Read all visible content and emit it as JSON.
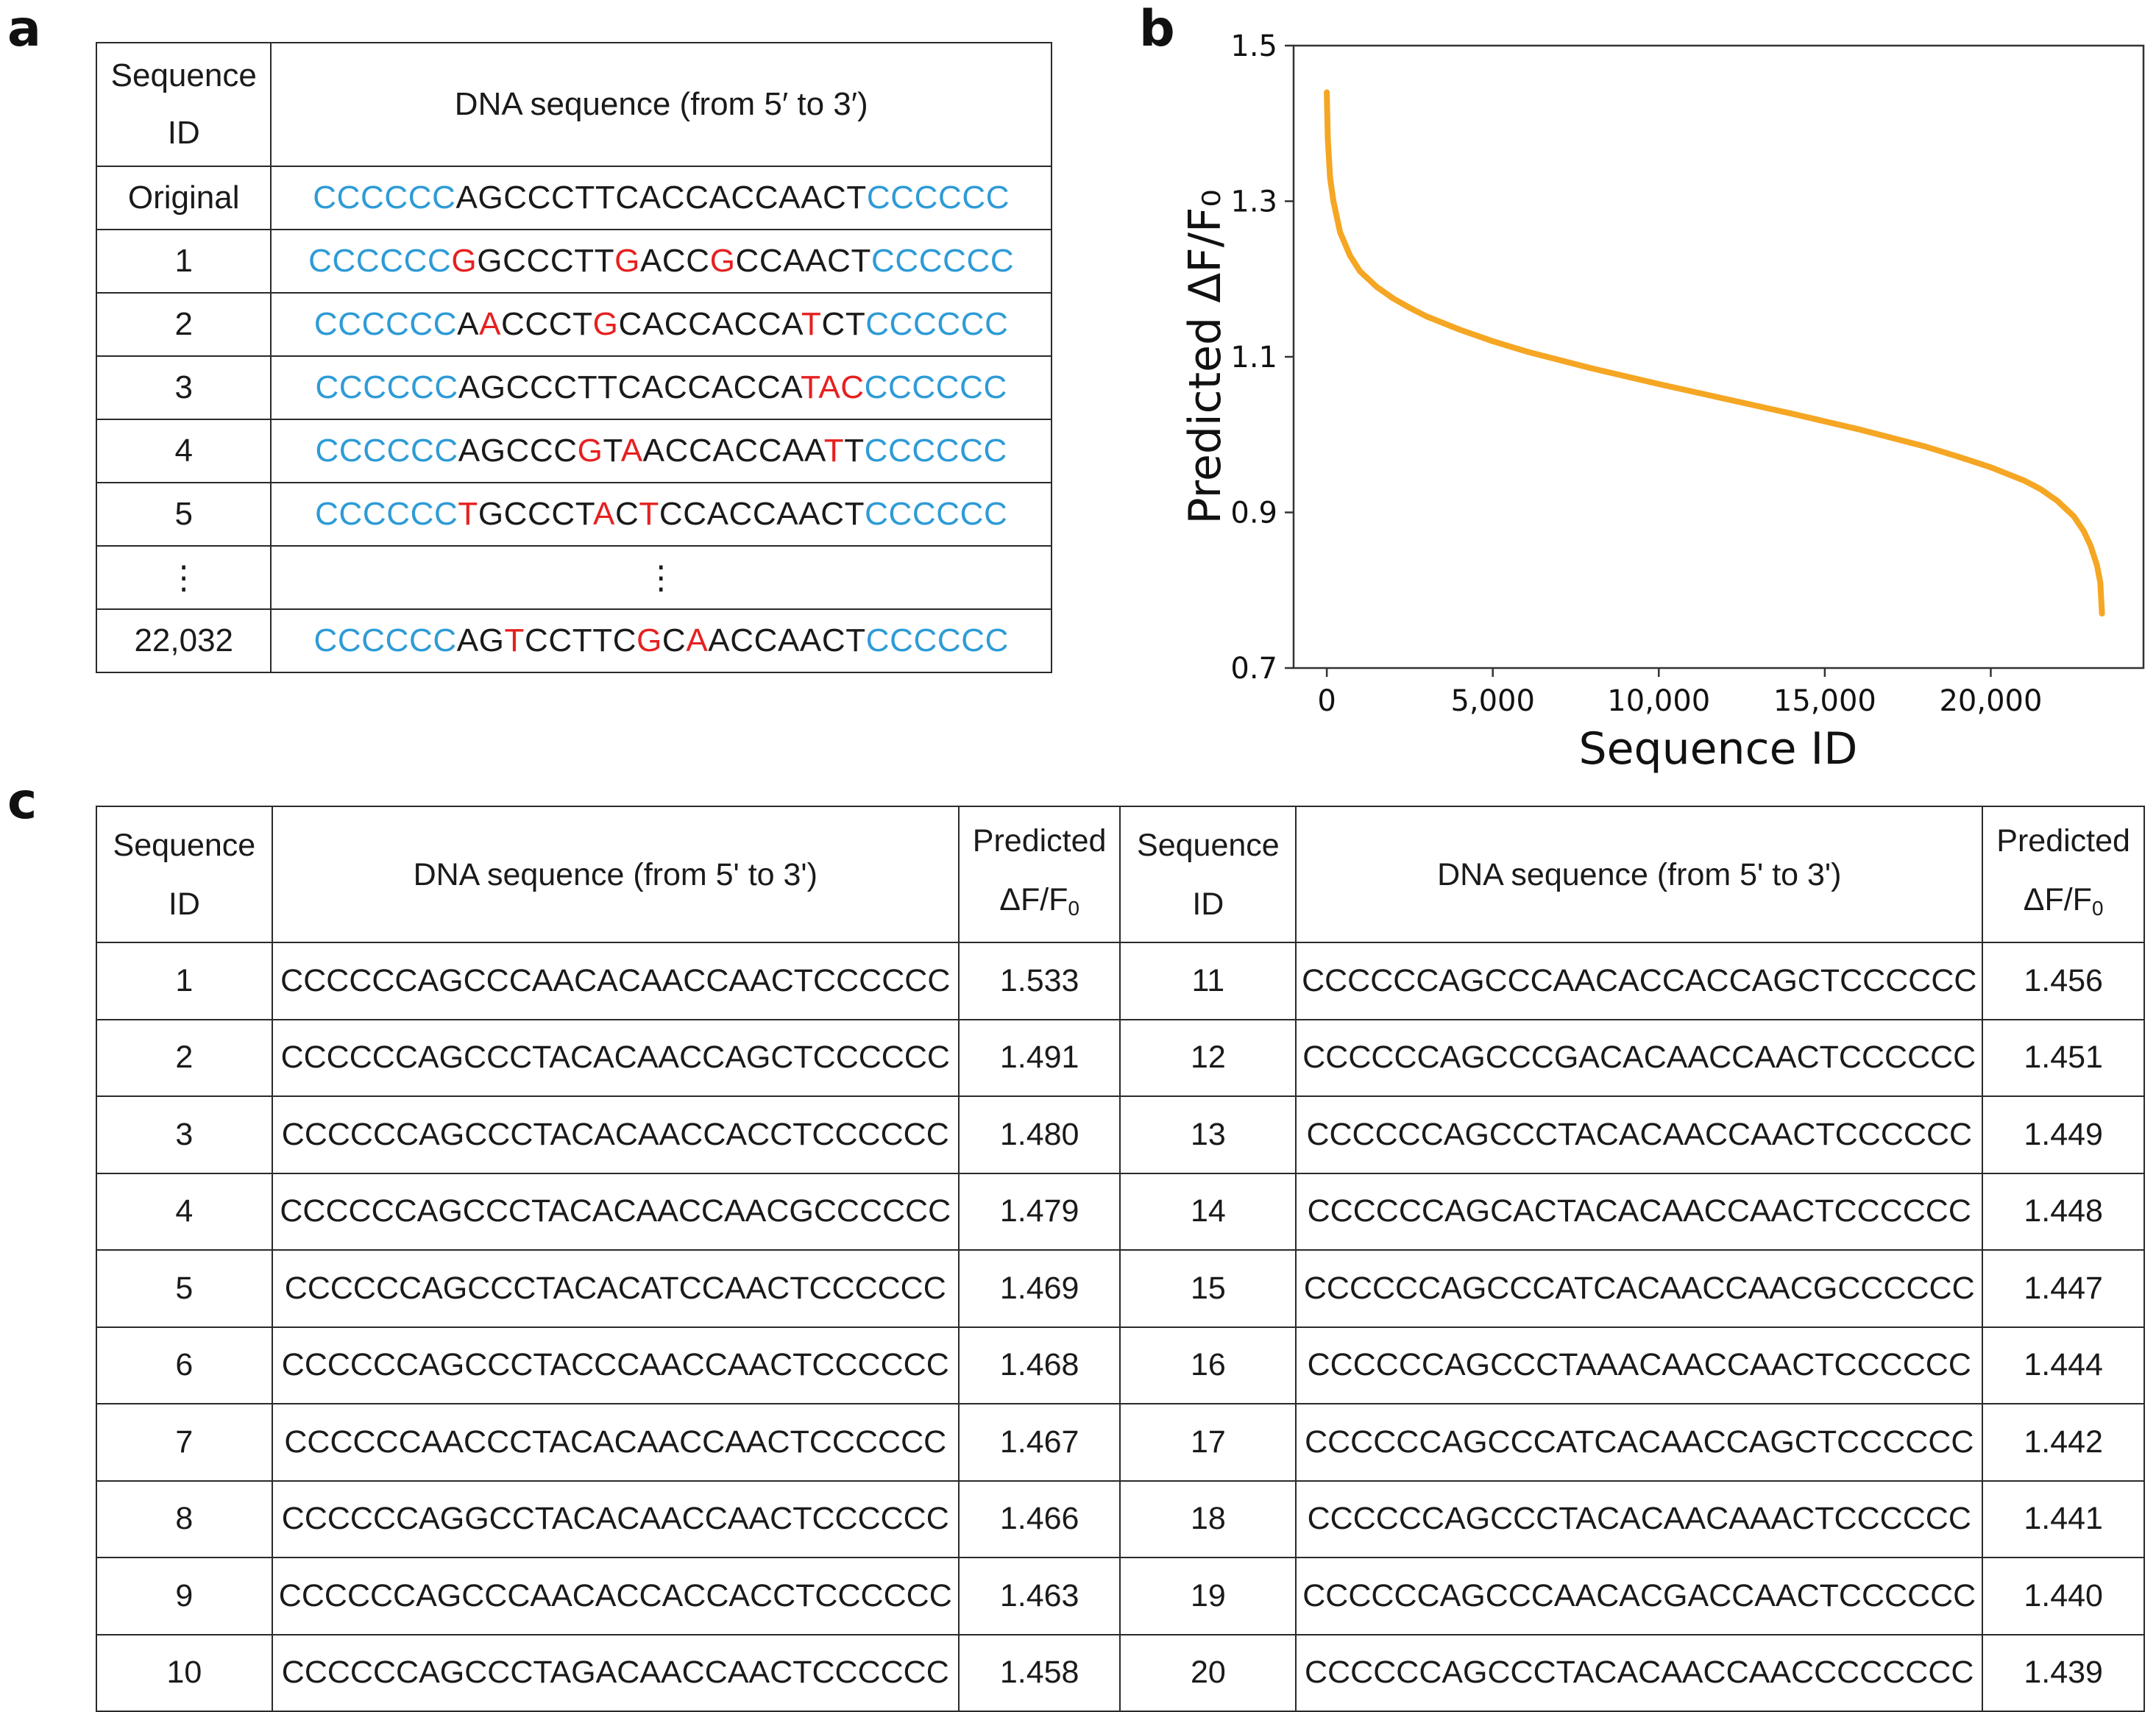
{
  "panels": {
    "a": "a",
    "b": "b",
    "c": "c"
  },
  "colors": {
    "flank": "#2e9bd6",
    "mutation": "#e62020",
    "curve": "#f5a623"
  },
  "tableA": {
    "header_id_line1": "Sequence",
    "header_id_line2": "ID",
    "header_seq": "DNA sequence (from 5′ to 3′)",
    "rows": [
      {
        "id": "Original",
        "segments": [
          [
            "CCCCCC",
            "b"
          ],
          [
            "AGCCCTTCACCACCAACT",
            "n"
          ],
          [
            "CCCCCC",
            "b"
          ]
        ]
      },
      {
        "id": "1",
        "segments": [
          [
            "CCCCCC",
            "b"
          ],
          [
            "G",
            "r"
          ],
          [
            "GCCCTT",
            "n"
          ],
          [
            "G",
            "r"
          ],
          [
            "ACC",
            "n"
          ],
          [
            "G",
            "r"
          ],
          [
            "CCAACT",
            "n"
          ],
          [
            "CCCCCC",
            "b"
          ]
        ]
      },
      {
        "id": "2",
        "segments": [
          [
            "CCCCCC",
            "b"
          ],
          [
            "A",
            "n"
          ],
          [
            "A",
            "r"
          ],
          [
            "CCCT",
            "n"
          ],
          [
            "G",
            "r"
          ],
          [
            "CACCACCA",
            "n"
          ],
          [
            "T",
            "r"
          ],
          [
            "CT",
            "n"
          ],
          [
            "CCCCCC",
            "b"
          ]
        ]
      },
      {
        "id": "3",
        "segments": [
          [
            "CCCCCC",
            "b"
          ],
          [
            "AGCCCTTCACCACCA",
            "n"
          ],
          [
            "TAC",
            "r"
          ],
          [
            "CCCCCC",
            "b"
          ]
        ]
      },
      {
        "id": "4",
        "segments": [
          [
            "CCCCCC",
            "b"
          ],
          [
            "AGCCC",
            "n"
          ],
          [
            "G",
            "r"
          ],
          [
            "T",
            "n"
          ],
          [
            "A",
            "r"
          ],
          [
            "ACCACCAA",
            "n"
          ],
          [
            "T",
            "r"
          ],
          [
            "T",
            "n"
          ],
          [
            "CCCCCC",
            "b"
          ]
        ]
      },
      {
        "id": "5",
        "segments": [
          [
            "CCCCCC",
            "b"
          ],
          [
            "T",
            "r"
          ],
          [
            "GCCCT",
            "n"
          ],
          [
            "A",
            "r"
          ],
          [
            "C",
            "n"
          ],
          [
            "T",
            "r"
          ],
          [
            "CCACCAACT",
            "n"
          ],
          [
            "CCCCCC",
            "b"
          ]
        ]
      },
      {
        "id": "⋮",
        "segments": [
          [
            "⋮",
            "n"
          ]
        ]
      },
      {
        "id": "22,032",
        "segments": [
          [
            "CCCCCC",
            "b"
          ],
          [
            "AG",
            "n"
          ],
          [
            "T",
            "r"
          ],
          [
            "CCTTC",
            "n"
          ],
          [
            "G",
            "r"
          ],
          [
            "C",
            "n"
          ],
          [
            "A",
            "r"
          ],
          [
            "ACCAACT",
            "n"
          ],
          [
            "CCCCCC",
            "b"
          ]
        ]
      }
    ]
  },
  "chart_data": {
    "type": "line",
    "title": "",
    "xlabel": "Sequence ID",
    "ylabel": "Predicted ΔF/F₀",
    "xlim": [
      -1000,
      24600
    ],
    "ylim": [
      0.7,
      1.5
    ],
    "xticks": [
      0,
      5000,
      10000,
      15000,
      20000
    ],
    "xtick_labels": [
      "0",
      "5,000",
      "10,000",
      "15,000",
      "20,000"
    ],
    "yticks": [
      0.7,
      0.9,
      1.1,
      1.3,
      1.5
    ],
    "ytick_labels": [
      "0.7",
      "0.9",
      "1.1",
      "1.3",
      "1.5"
    ],
    "grid": false,
    "series": [
      {
        "color": "#f5a623",
        "x": [
          0,
          30,
          100,
          200,
          400,
          700,
          1000,
          1500,
          2000,
          2500,
          3000,
          4000,
          5000,
          6000,
          8000,
          10000,
          12000,
          14000,
          16000,
          18000,
          19000,
          20000,
          21000,
          21500,
          22000,
          22500,
          22800,
          23000,
          23200,
          23300,
          23350
        ],
        "y": [
          1.44,
          1.38,
          1.33,
          1.3,
          1.26,
          1.23,
          1.21,
          1.19,
          1.175,
          1.163,
          1.152,
          1.135,
          1.12,
          1.107,
          1.085,
          1.065,
          1.046,
          1.027,
          1.007,
          0.985,
          0.972,
          0.958,
          0.941,
          0.93,
          0.915,
          0.895,
          0.876,
          0.858,
          0.832,
          0.81,
          0.77
        ]
      }
    ]
  },
  "tableC": {
    "header_id_line1": "Sequence",
    "header_id_line2": "ID",
    "header_seq": "DNA sequence (from 5' to 3')",
    "header_pred_line1": "Predicted",
    "header_pred_line2": "ΔF/F",
    "header_pred_sub": "0",
    "rows": [
      [
        "1",
        "CCCCCCAGCCCAACACAACCAACTCCCCCC",
        "1.533",
        "11",
        "CCCCCCAGCCCAACACCACCAGCTCCCCCC",
        "1.456"
      ],
      [
        "2",
        "CCCCCCAGCCCTACACAACCAGCTCCCCCC",
        "1.491",
        "12",
        "CCCCCCAGCCCGACACAACCAACTCCCCCC",
        "1.451"
      ],
      [
        "3",
        "CCCCCCAGCCCTACACAACCACCTCCCCCC",
        "1.480",
        "13",
        "CCCCCCAGCCCTACACAACCAACTCCCCCC",
        "1.449"
      ],
      [
        "4",
        "CCCCCCAGCCCTACACAACCAACGCCCCCC",
        "1.479",
        "14",
        "CCCCCCAGCACTACACAACCAACTCCCCCC",
        "1.448"
      ],
      [
        "5",
        "CCCCCCAGCCCTACACATCCAACTCCCCCC",
        "1.469",
        "15",
        "CCCCCCAGCCCATCACAACCAACGCCCCCC",
        "1.447"
      ],
      [
        "6",
        "CCCCCCAGCCCTACCCAACCAACTCCCCCC",
        "1.468",
        "16",
        "CCCCCCAGCCCTAAACAACCAACTCCCCCC",
        "1.444"
      ],
      [
        "7",
        "CCCCCCAACCCTACACAACCAACTCCCCCC",
        "1.467",
        "17",
        "CCCCCCAGCCCATCACAACCAGCTCCCCCC",
        "1.442"
      ],
      [
        "8",
        "CCCCCCAGGCCTACACAACCAACTCCCCCC",
        "1.466",
        "18",
        "CCCCCCAGCCCTACACAACAAACTCCCCCC",
        "1.441"
      ],
      [
        "9",
        "CCCCCCAGCCCAACACCACCACCTCCCCCC",
        "1.463",
        "19",
        "CCCCCCAGCCCAACACGACCAACTCCCCCC",
        "1.440"
      ],
      [
        "10",
        "CCCCCCAGCCCTAGACAACCAACTCCCCCC",
        "1.458",
        "20",
        "CCCCCCAGCCCTACACAACCAACCCCCCCC",
        "1.439"
      ]
    ]
  }
}
